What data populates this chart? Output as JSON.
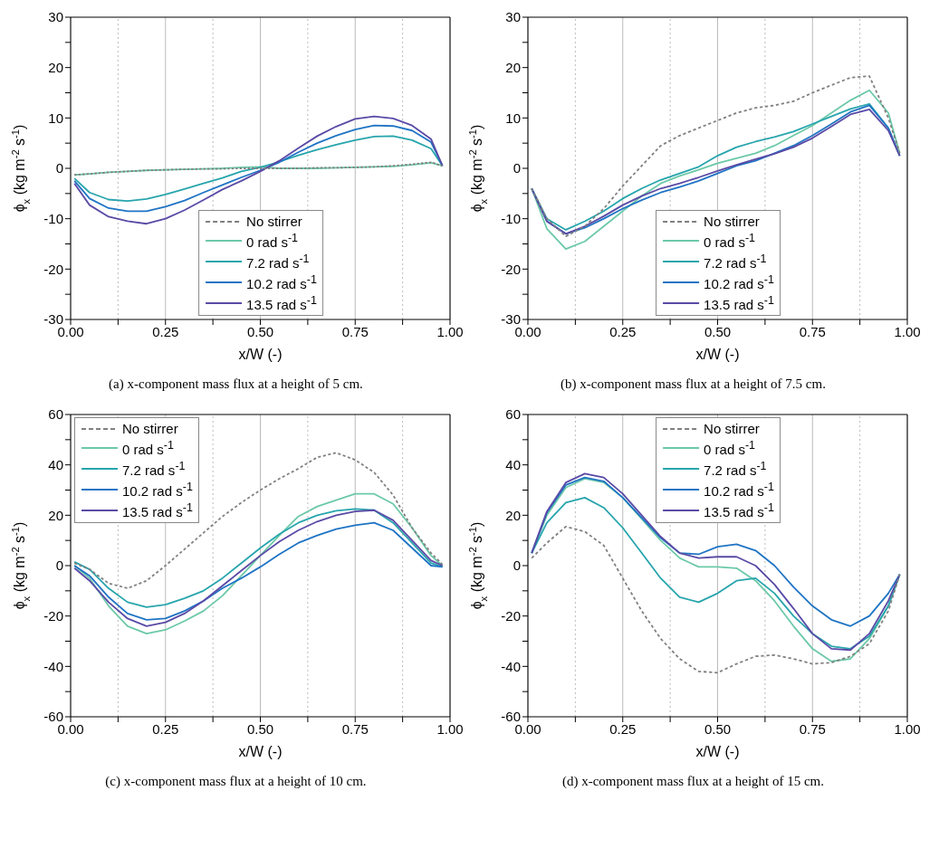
{
  "chart_data": [
    {
      "type": "line",
      "xlabel": "x/W (-)",
      "ylabel": "ϕ$_{x}$ (kg m$^{-2}$ s$^{-1}$)",
      "annotations": [
        "(a) x-component mass flux at a height of 5 cm."
      ],
      "xlim": [
        0,
        1
      ],
      "xticks": [
        {
          "value": 0,
          "label": "0.00"
        },
        {
          "value": 0.125,
          "label": null
        },
        {
          "value": 0.25,
          "label": "0.25"
        },
        {
          "value": 0.375,
          "label": null
        },
        {
          "value": 0.5,
          "label": "0.50"
        },
        {
          "value": 0.625,
          "label": null
        },
        {
          "value": 0.75,
          "label": "0.75"
        },
        {
          "value": 0.875,
          "label": null
        },
        {
          "value": 1,
          "label": "1.00"
        }
      ],
      "ylim": [
        -30,
        30
      ],
      "yticks": [
        -30,
        {
          "value": -25,
          "label": null
        },
        -20,
        {
          "value": -15,
          "label": null
        },
        -10,
        {
          "value": -5,
          "label": null
        },
        0,
        {
          "value": 5,
          "label": null
        },
        10,
        {
          "value": 15,
          "label": null
        },
        20,
        {
          "value": 25,
          "label": null
        },
        30
      ],
      "grid": "x",
      "legend": "bottom",
      "marker": "none",
      "line_style": "solid",
      "x": [
        0.01,
        0.05,
        0.1,
        0.15,
        0.2,
        0.25,
        0.3,
        0.35,
        0.4,
        0.45,
        0.5,
        0.55,
        0.6,
        0.65,
        0.7,
        0.75,
        0.8,
        0.85,
        0.9,
        0.95,
        0.98
      ],
      "series": [
        {
          "name": "No stirrer",
          "color": "#808080",
          "line_style": "dashed",
          "values": [
            -1.3,
            -1.1,
            -0.8,
            -0.6,
            -0.4,
            -0.3,
            -0.2,
            -0.1,
            -0.1,
            0,
            0,
            0,
            0,
            0.1,
            0.1,
            0.2,
            0.3,
            0.5,
            0.8,
            1.2,
            0.5
          ]
        },
        {
          "name": "0 rad s$^{-1}$",
          "color": "#6cc9a8",
          "values": [
            -1.3,
            -1.1,
            -0.8,
            -0.6,
            -0.4,
            -0.3,
            -0.2,
            -0.1,
            0,
            0.2,
            0.3,
            0,
            0,
            0,
            0.1,
            0.2,
            0.3,
            0.4,
            0.7,
            1.1,
            0.5
          ]
        },
        {
          "name": "7.2 rad s$^{-1}$",
          "color": "#27a5ad",
          "values": [
            -2,
            -4.8,
            -6.2,
            -6.5,
            -6.1,
            -5.2,
            -4.1,
            -3,
            -1.9,
            -0.6,
            0.2,
            1.3,
            2.6,
            3.7,
            4.7,
            5.6,
            6.3,
            6.4,
            5.6,
            3.9,
            0.5
          ]
        },
        {
          "name": "10.2 rad s$^{-1}$",
          "color": "#1f74c4",
          "values": [
            -2.5,
            -6,
            -7.9,
            -8.5,
            -8.5,
            -7.6,
            -6.4,
            -4.8,
            -3.3,
            -1.8,
            -0.4,
            1.2,
            3.2,
            5,
            6.5,
            7.7,
            8.5,
            8.4,
            7.5,
            5.2,
            0.5
          ]
        },
        {
          "name": "13.5 rad s$^{-1}$",
          "color": "#5a4aa6",
          "values": [
            -3,
            -7.3,
            -9.6,
            -10.5,
            -11,
            -10,
            -8.3,
            -6.3,
            -4.2,
            -2.5,
            -0.6,
            1.5,
            4,
            6.4,
            8.3,
            9.8,
            10.3,
            9.9,
            8.5,
            5.8,
            0.5
          ]
        }
      ]
    },
    {
      "type": "line",
      "xlabel": "x/W (-)",
      "ylabel": "ϕ$_{x}$ (kg m$^{-2}$ s$^{-1}$)",
      "annotations": [
        "(b) x-component mass flux at a height of 7.5 cm."
      ],
      "xlim": [
        0,
        1
      ],
      "xticks": [
        {
          "value": 0,
          "label": "0.00"
        },
        {
          "value": 0.125,
          "label": null
        },
        {
          "value": 0.25,
          "label": "0.25"
        },
        {
          "value": 0.375,
          "label": null
        },
        {
          "value": 0.5,
          "label": "0.50"
        },
        {
          "value": 0.625,
          "label": null
        },
        {
          "value": 0.75,
          "label": "0.75"
        },
        {
          "value": 0.875,
          "label": null
        },
        {
          "value": 1,
          "label": "1.00"
        }
      ],
      "ylim": [
        -30,
        30
      ],
      "yticks": [
        -30,
        {
          "value": -25,
          "label": null
        },
        -20,
        {
          "value": -15,
          "label": null
        },
        -10,
        {
          "value": -5,
          "label": null
        },
        0,
        {
          "value": 5,
          "label": null
        },
        10,
        {
          "value": 15,
          "label": null
        },
        20,
        {
          "value": 25,
          "label": null
        },
        30
      ],
      "grid": "x",
      "legend": "bottom",
      "marker": "none",
      "line_style": "solid",
      "x": [
        0.01,
        0.05,
        0.1,
        0.15,
        0.2,
        0.25,
        0.3,
        0.35,
        0.4,
        0.45,
        0.5,
        0.55,
        0.6,
        0.65,
        0.7,
        0.75,
        0.8,
        0.85,
        0.9,
        0.95,
        0.98
      ],
      "series": [
        {
          "name": "No stirrer",
          "color": "#808080",
          "line_style": "dashed",
          "values": [
            -4,
            -10,
            -13.5,
            -11.5,
            -8,
            -3.5,
            0.5,
            4.5,
            6.5,
            8,
            9.5,
            11,
            12,
            12.5,
            13.3,
            15,
            16.5,
            18,
            18.3,
            10,
            3
          ]
        },
        {
          "name": "0 rad s$^{-1}$",
          "color": "#6cc9a8",
          "values": [
            -4,
            -12,
            -16,
            -14.5,
            -11.5,
            -8.5,
            -5.5,
            -3,
            -1.5,
            -0.3,
            1,
            2,
            3,
            4.5,
            6.5,
            8.5,
            11,
            13.5,
            15.5,
            11,
            3
          ]
        },
        {
          "name": "7.2 rad s$^{-1}$",
          "color": "#27a5ad",
          "values": [
            -4,
            -10,
            -12.2,
            -10.5,
            -8.5,
            -6,
            -4,
            -2.3,
            -1,
            0.3,
            2.5,
            4.2,
            5.3,
            6.2,
            7.3,
            8.8,
            10.3,
            11.8,
            12.8,
            8,
            2.5
          ]
        },
        {
          "name": "10.2 rad s$^{-1}$",
          "color": "#1f74c4",
          "values": [
            -4,
            -10.5,
            -13,
            -11.8,
            -10,
            -8,
            -6.3,
            -4.8,
            -3.7,
            -2.5,
            -1,
            0.5,
            1.5,
            3,
            4.5,
            6.5,
            8.8,
            11.2,
            12.5,
            8,
            2.5
          ]
        },
        {
          "name": "13.5 rad s$^{-1}$",
          "color": "#5a4aa6",
          "values": [
            -4,
            -10.5,
            -13,
            -11.5,
            -9.5,
            -7.3,
            -5.5,
            -4,
            -3,
            -1.8,
            -0.5,
            0.7,
            1.8,
            2.9,
            4.2,
            6,
            8.3,
            10.7,
            11.7,
            7.5,
            2.5
          ]
        }
      ]
    },
    {
      "type": "line",
      "xlabel": "x/W (-)",
      "ylabel": "ϕ$_{x}$ (kg m$^{-2}$ s$^{-1}$)",
      "annotations": [
        "(c) x-component mass flux at a height of 10 cm."
      ],
      "xlim": [
        0,
        1
      ],
      "xticks": [
        {
          "value": 0,
          "label": "0.00"
        },
        {
          "value": 0.125,
          "label": null
        },
        {
          "value": 0.25,
          "label": "0.25"
        },
        {
          "value": 0.375,
          "label": null
        },
        {
          "value": 0.5,
          "label": "0.50"
        },
        {
          "value": 0.625,
          "label": null
        },
        {
          "value": 0.75,
          "label": "0.75"
        },
        {
          "value": 0.875,
          "label": null
        },
        {
          "value": 1,
          "label": "1.00"
        }
      ],
      "ylim": [
        -60,
        60
      ],
      "yticks": [
        -60,
        {
          "value": -50,
          "label": null
        },
        -40,
        {
          "value": -30,
          "label": null
        },
        -20,
        {
          "value": -10,
          "label": null
        },
        0,
        {
          "value": 10,
          "label": null
        },
        20,
        {
          "value": 30,
          "label": null
        },
        40,
        {
          "value": 50,
          "label": null
        },
        60
      ],
      "grid": "x",
      "legend": "top left",
      "marker": "none",
      "line_style": "solid",
      "x": [
        0.01,
        0.05,
        0.1,
        0.15,
        0.2,
        0.25,
        0.3,
        0.35,
        0.4,
        0.45,
        0.5,
        0.55,
        0.6,
        0.65,
        0.7,
        0.75,
        0.8,
        0.85,
        0.9,
        0.95,
        0.98
      ],
      "series": [
        {
          "name": "No stirrer",
          "color": "#808080",
          "line_style": "dashed",
          "values": [
            1,
            -1.5,
            -7,
            -9,
            -6,
            0,
            6.5,
            13,
            19.5,
            25,
            30,
            34.5,
            38.5,
            43,
            44.8,
            42,
            37,
            28,
            15,
            5,
            0.5
          ]
        },
        {
          "name": "0 rad s$^{-1}$",
          "color": "#6cc9a8",
          "values": [
            0,
            -5,
            -16,
            -24,
            -27,
            -25.5,
            -22,
            -18,
            -12,
            -4,
            4,
            12,
            19.5,
            23.5,
            26,
            28.5,
            28.5,
            24.5,
            15,
            4,
            0
          ]
        },
        {
          "name": "7.2 rad s$^{-1}$",
          "color": "#27a5ad",
          "values": [
            1.5,
            -1.5,
            -9,
            -14.5,
            -16.5,
            -15.5,
            -13,
            -10,
            -5,
            1,
            7,
            12.5,
            17,
            20,
            21.8,
            22.5,
            22,
            17,
            9,
            1,
            -0.5
          ]
        },
        {
          "name": "10.2 rad s$^{-1}$",
          "color": "#1f74c4",
          "values": [
            0,
            -4,
            -12.5,
            -19,
            -21.5,
            -21,
            -18,
            -14,
            -9,
            -5,
            -0.5,
            4.5,
            9,
            12,
            14.5,
            16,
            17,
            14,
            7,
            0,
            -0.5
          ]
        },
        {
          "name": "13.5 rad s$^{-1}$",
          "color": "#5a4aa6",
          "values": [
            -1,
            -6,
            -14.5,
            -21,
            -24,
            -22.5,
            -19,
            -14,
            -8,
            -2,
            4,
            9.5,
            14,
            17.5,
            20,
            21.5,
            22,
            18,
            10,
            2,
            0
          ]
        }
      ]
    },
    {
      "type": "line",
      "xlabel": "x/W (-)",
      "ylabel": "ϕ$_{x}$ (kg m$^{-2}$ s$^{-1}$)",
      "annotations": [
        "(d) x-component mass flux at a height of 15 cm."
      ],
      "xlim": [
        0,
        1
      ],
      "xticks": [
        {
          "value": 0,
          "label": "0.00"
        },
        {
          "value": 0.125,
          "label": null
        },
        {
          "value": 0.25,
          "label": "0.25"
        },
        {
          "value": 0.375,
          "label": null
        },
        {
          "value": 0.5,
          "label": "0.50"
        },
        {
          "value": 0.625,
          "label": null
        },
        {
          "value": 0.75,
          "label": "0.75"
        },
        {
          "value": 0.875,
          "label": null
        },
        {
          "value": 1,
          "label": "1.00"
        }
      ],
      "ylim": [
        -60,
        60
      ],
      "yticks": [
        -60,
        {
          "value": -50,
          "label": null
        },
        -40,
        {
          "value": -30,
          "label": null
        },
        -20,
        {
          "value": -10,
          "label": null
        },
        0,
        {
          "value": 10,
          "label": null
        },
        20,
        {
          "value": 30,
          "label": null
        },
        40,
        {
          "value": 50,
          "label": null
        },
        60
      ],
      "grid": "x",
      "legend": "top",
      "marker": "none",
      "line_style": "solid",
      "x": [
        0.01,
        0.05,
        0.1,
        0.15,
        0.2,
        0.25,
        0.3,
        0.35,
        0.4,
        0.45,
        0.5,
        0.55,
        0.6,
        0.65,
        0.7,
        0.75,
        0.8,
        0.85,
        0.9,
        0.95,
        0.98
      ],
      "series": [
        {
          "name": "No stirrer",
          "color": "#808080",
          "line_style": "dashed",
          "values": [
            3,
            9,
            15.5,
            13.5,
            8,
            -5,
            -18,
            -29,
            -37,
            -42,
            -42.5,
            -39,
            -36,
            -35.5,
            -37,
            -39,
            -38.5,
            -36,
            -31,
            -18,
            -3.5
          ]
        },
        {
          "name": "0 rad s$^{-1}$",
          "color": "#6cc9a8",
          "values": [
            5,
            20,
            31,
            34.5,
            33,
            27,
            18.5,
            10,
            3,
            -0.5,
            -0.5,
            -1,
            -6,
            -14,
            -24,
            -33,
            -38,
            -37,
            -29,
            -16,
            -3.5
          ]
        },
        {
          "name": "7.2 rad s$^{-1}$",
          "color": "#27a5ad",
          "values": [
            5,
            17,
            25,
            27,
            23,
            15,
            5,
            -5,
            -12.5,
            -14.5,
            -11,
            -6,
            -5,
            -11,
            -20,
            -27,
            -32,
            -33,
            -28,
            -16,
            -3.5
          ]
        },
        {
          "name": "10.2 rad s$^{-1}$",
          "color": "#1f74c4",
          "values": [
            5,
            21,
            32,
            35,
            33.5,
            27,
            19,
            11,
            5,
            4.5,
            7.5,
            8.5,
            6,
            0,
            -8.5,
            -16,
            -21.5,
            -24,
            -20,
            -11,
            -3.5
          ]
        },
        {
          "name": "13.5 rad s$^{-1}$",
          "color": "#5a4aa6",
          "values": [
            5,
            21.5,
            33,
            36.5,
            35,
            28.5,
            20,
            11.5,
            5,
            3,
            3.5,
            3.5,
            0,
            -7.5,
            -17,
            -27,
            -33,
            -33.5,
            -27,
            -14,
            -3.5
          ]
        }
      ]
    }
  ]
}
